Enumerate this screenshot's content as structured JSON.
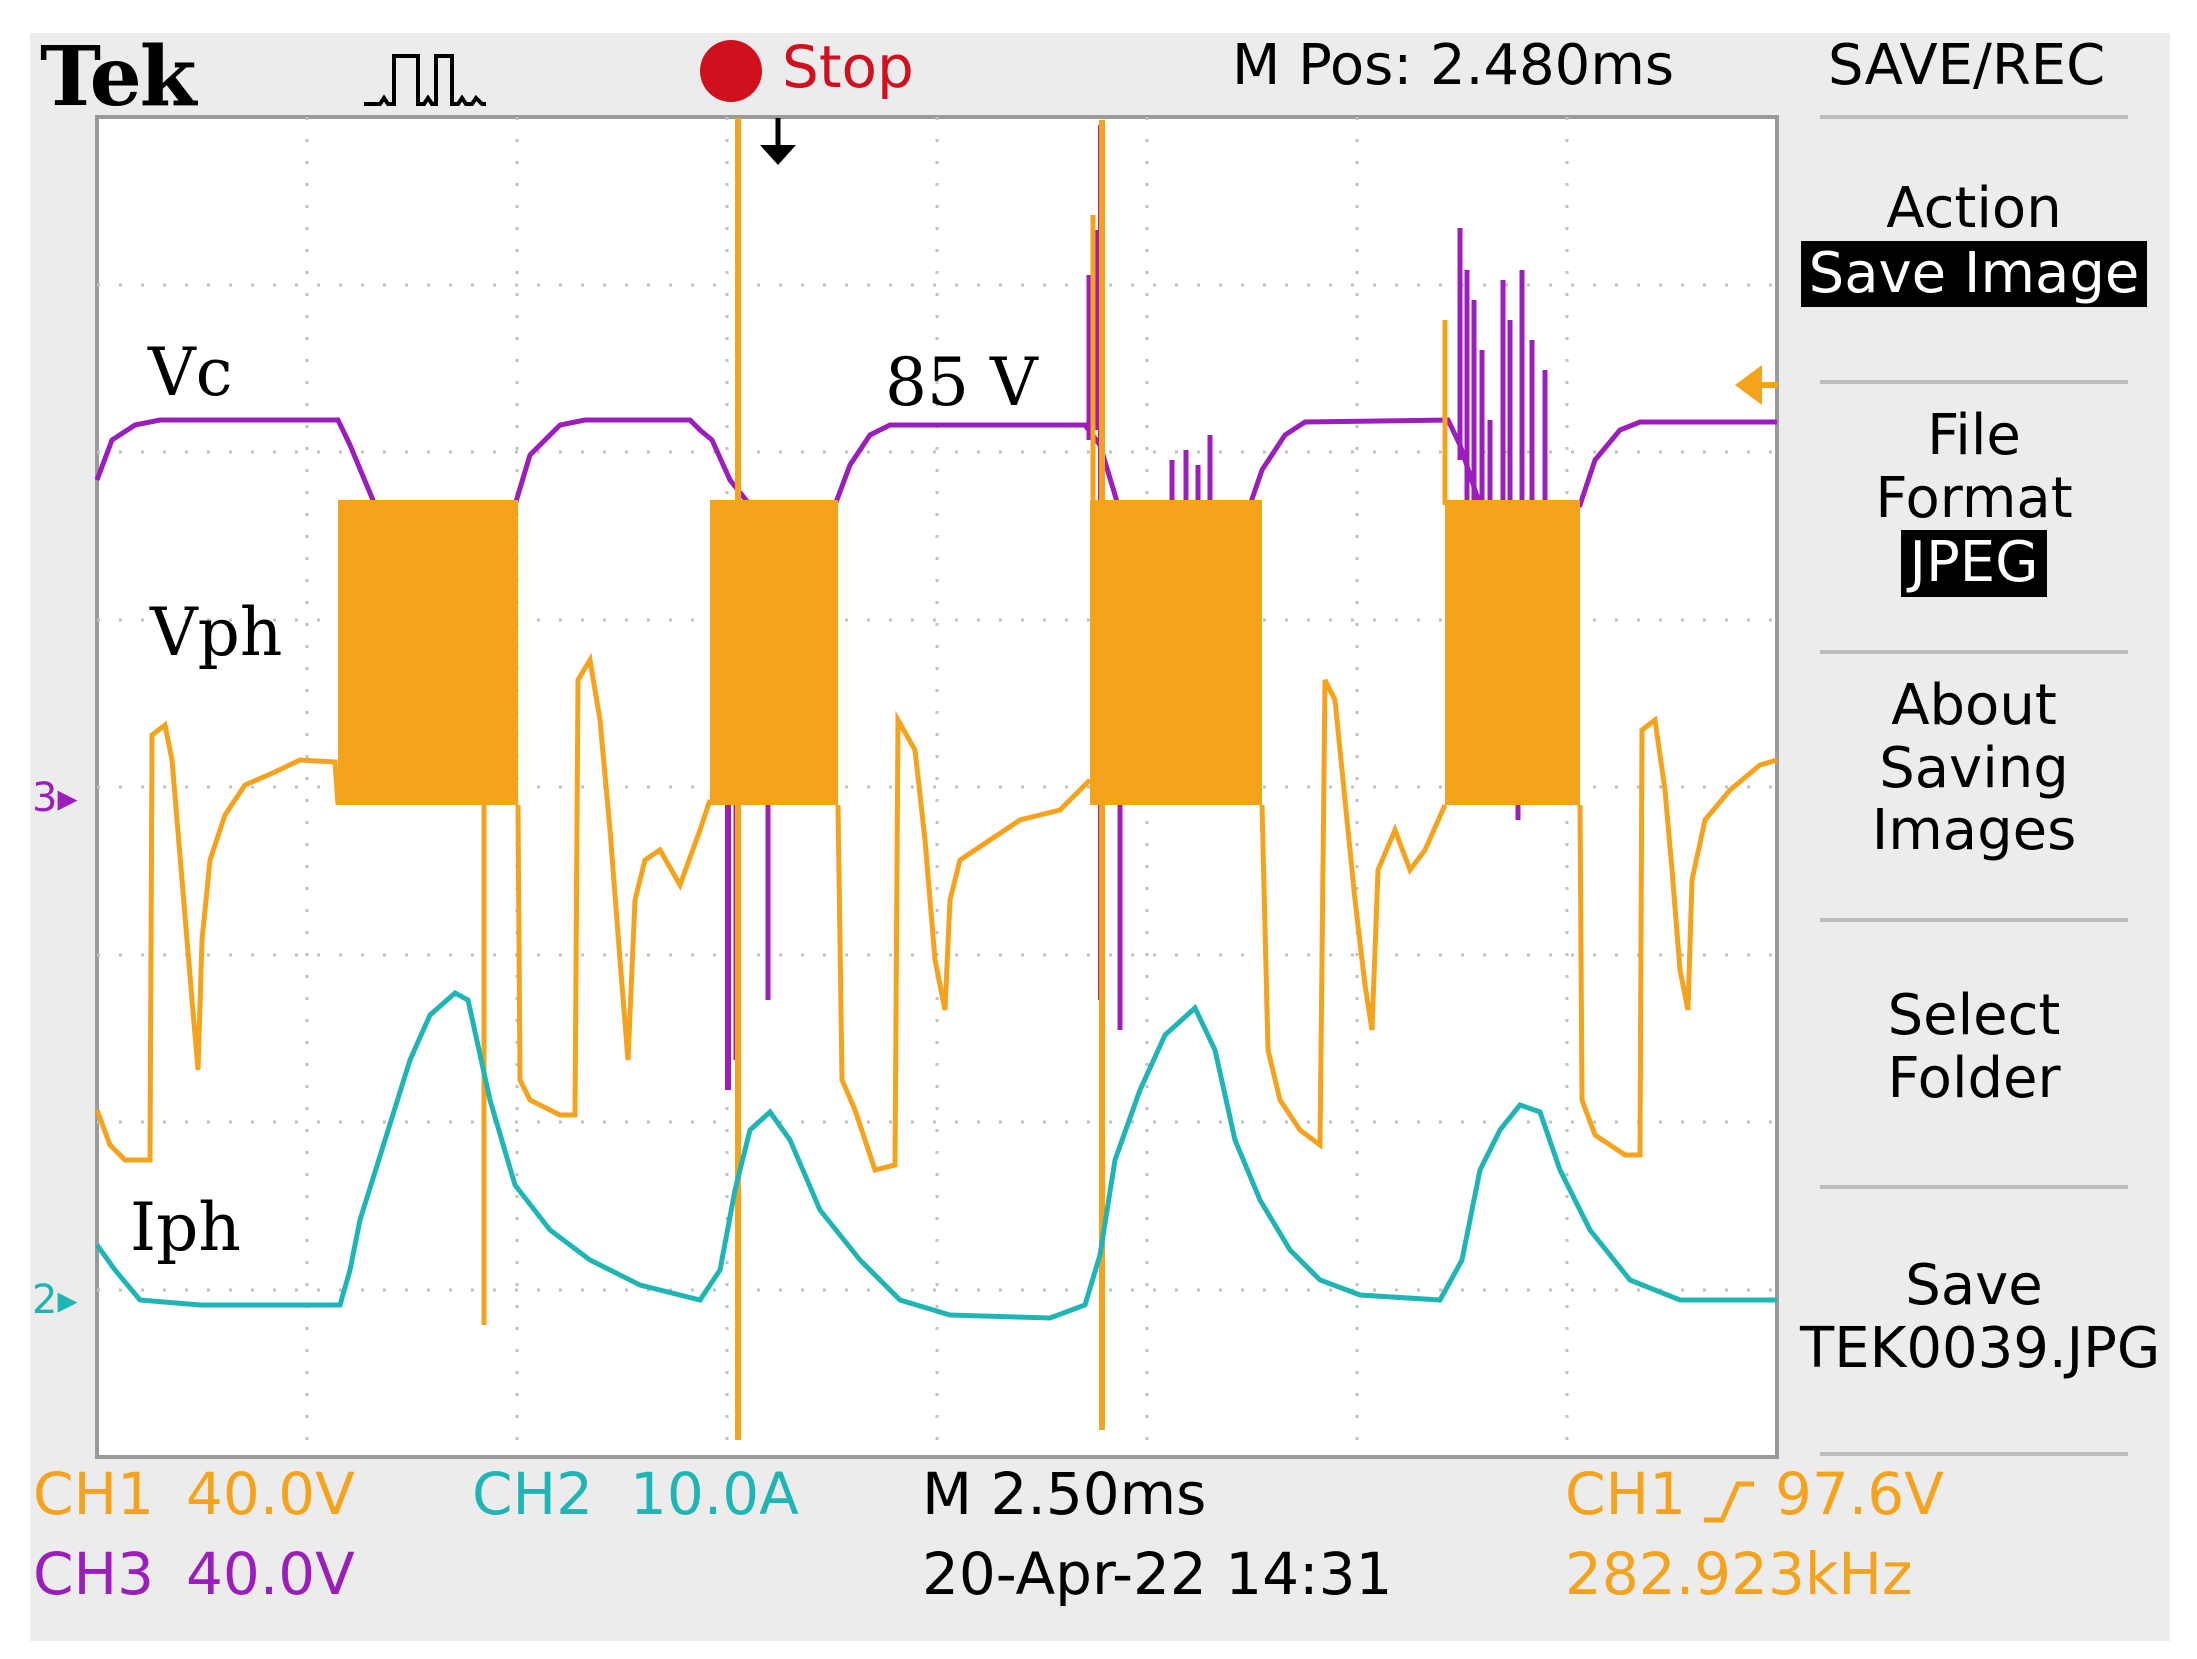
{
  "header": {
    "brand": "Tek",
    "acquisition_state": "Stop",
    "horizontal_position": "M Pos: 2.480ms",
    "menu_title": "SAVE/REC"
  },
  "side_menu": {
    "action_label": "Action",
    "action_value": "Save Image",
    "file_format_label": "File Format",
    "file_format_value": "JPEG",
    "about_label": "About Saving Images",
    "select_label": "Select Folder",
    "save_label": "Save",
    "save_filename": "TEK0039.JPG"
  },
  "annotations": {
    "vc": "Vc",
    "vph": "Vph",
    "iph": "Iph",
    "voltage_level": "85 V"
  },
  "channel_markers": {
    "ch3": "3",
    "ch2": "2"
  },
  "status_bar": {
    "ch1_name": "CH1",
    "ch1_scale": "40.0V",
    "ch3_name": "CH3",
    "ch3_scale": "40.0V",
    "ch2_name": "CH2",
    "ch2_scale": "10.0A",
    "timebase": "M 2.50ms",
    "datetime": "20-Apr-22 14:31",
    "trigger_source": "CH1",
    "trigger_level": "97.6V",
    "frequency": "282.923kHz"
  },
  "colors": {
    "ch1": "#f5a31d",
    "ch2": "#20b5b5",
    "ch3": "#9b1dbb",
    "stop": "#d0101e"
  }
}
